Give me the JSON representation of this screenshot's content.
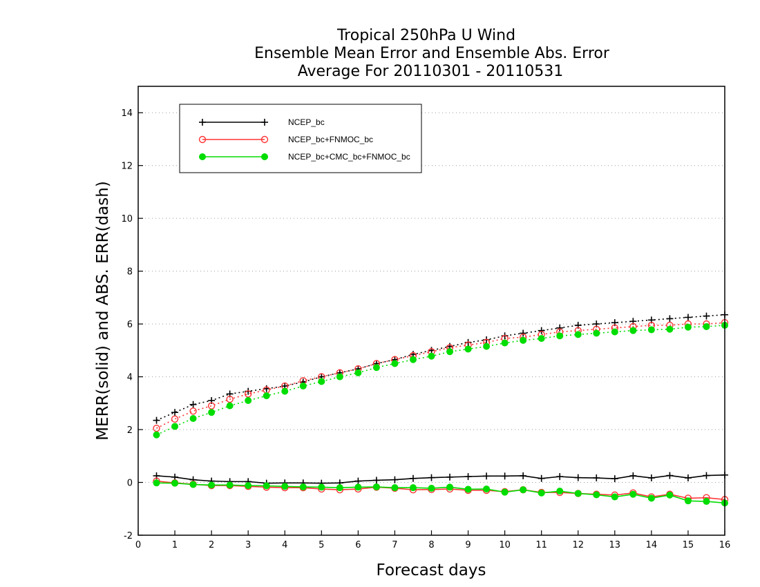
{
  "chart_data": {
    "type": "line",
    "title": [
      "Tropical 250hPa U Wind",
      "Ensemble Mean Error and Ensemble Abs. Error",
      "Average For 20110301 - 20110531"
    ],
    "xlabel": "Forecast days",
    "ylabel": "MERR(solid) and ABS. ERR(dash)",
    "xlim": [
      0,
      16
    ],
    "ylim": [
      -2,
      15
    ],
    "xticks": [
      0,
      1,
      2,
      3,
      4,
      5,
      6,
      7,
      8,
      9,
      10,
      11,
      12,
      13,
      14,
      15,
      16
    ],
    "yticks": [
      -2,
      0,
      2,
      4,
      6,
      8,
      10,
      12,
      14
    ],
    "grid": "horizontal dotted",
    "legend_position": "top-left",
    "x": [
      0.5,
      1,
      1.5,
      2,
      2.5,
      3,
      3.5,
      4,
      4.5,
      5,
      5.5,
      6,
      6.5,
      7,
      7.5,
      8,
      8.5,
      9,
      9.5,
      10,
      10.5,
      11,
      11.5,
      12,
      12.5,
      13,
      13.5,
      14,
      14.5,
      15,
      15.5,
      16
    ],
    "series": [
      {
        "name": "NCEP_bc",
        "color": "#000000",
        "marker": "plus",
        "merr": [
          0.25,
          0.2,
          0.1,
          0.05,
          0.03,
          0.03,
          -0.03,
          -0.02,
          -0.02,
          -0.03,
          -0.02,
          0.05,
          0.08,
          0.1,
          0.15,
          0.18,
          0.2,
          0.22,
          0.24,
          0.24,
          0.25,
          0.15,
          0.22,
          0.18,
          0.17,
          0.14,
          0.25,
          0.17,
          0.26,
          0.17,
          0.26,
          0.28
        ],
        "abs_err": [
          2.35,
          2.65,
          2.95,
          3.1,
          3.35,
          3.45,
          3.55,
          3.65,
          3.8,
          4.0,
          4.15,
          4.3,
          4.5,
          4.65,
          4.85,
          5.0,
          5.15,
          5.3,
          5.4,
          5.55,
          5.65,
          5.75,
          5.85,
          5.95,
          6.0,
          6.05,
          6.1,
          6.15,
          6.2,
          6.25,
          6.3,
          6.35
        ]
      },
      {
        "name": "NCEP_bc+FNMOC_bc",
        "color": "#ff3333",
        "marker": "open-circle",
        "merr": [
          0.05,
          -0.02,
          -0.07,
          -0.12,
          -0.12,
          -0.15,
          -0.18,
          -0.2,
          -0.2,
          -0.25,
          -0.28,
          -0.25,
          -0.18,
          -0.22,
          -0.28,
          -0.27,
          -0.25,
          -0.3,
          -0.3,
          -0.35,
          -0.28,
          -0.38,
          -0.38,
          -0.42,
          -0.45,
          -0.48,
          -0.4,
          -0.55,
          -0.45,
          -0.6,
          -0.58,
          -0.65
        ],
        "abs_err": [
          2.05,
          2.4,
          2.7,
          2.9,
          3.15,
          3.35,
          3.5,
          3.65,
          3.85,
          4.0,
          4.15,
          4.3,
          4.5,
          4.65,
          4.8,
          4.95,
          5.1,
          5.2,
          5.3,
          5.45,
          5.5,
          5.6,
          5.7,
          5.75,
          5.8,
          5.85,
          5.9,
          5.95,
          5.95,
          6.0,
          6.0,
          6.05
        ]
      },
      {
        "name": "NCEP_bc+CMC_bc+FNMOC_bc",
        "color": "#00dd00",
        "marker": "filled-circle",
        "merr": [
          -0.02,
          -0.03,
          -0.08,
          -0.1,
          -0.1,
          -0.12,
          -0.13,
          -0.15,
          -0.17,
          -0.18,
          -0.2,
          -0.18,
          -0.17,
          -0.2,
          -0.2,
          -0.22,
          -0.18,
          -0.26,
          -0.25,
          -0.37,
          -0.28,
          -0.4,
          -0.33,
          -0.42,
          -0.47,
          -0.55,
          -0.45,
          -0.6,
          -0.48,
          -0.7,
          -0.72,
          -0.78
        ],
        "abs_err": [
          1.8,
          2.12,
          2.42,
          2.65,
          2.9,
          3.1,
          3.28,
          3.45,
          3.65,
          3.82,
          4.0,
          4.15,
          4.35,
          4.5,
          4.65,
          4.78,
          4.95,
          5.05,
          5.15,
          5.28,
          5.38,
          5.45,
          5.55,
          5.6,
          5.65,
          5.7,
          5.75,
          5.78,
          5.8,
          5.88,
          5.9,
          5.95
        ]
      }
    ]
  }
}
